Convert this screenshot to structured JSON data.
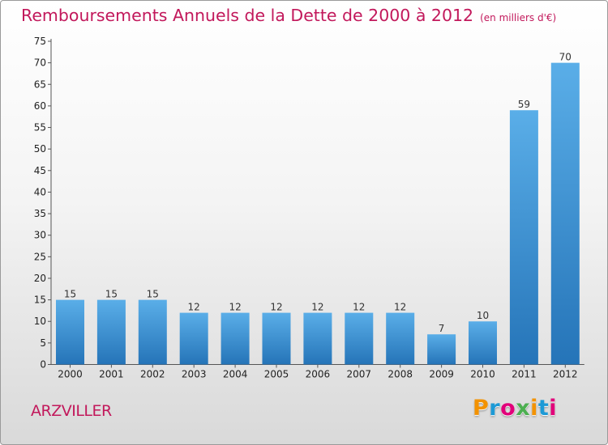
{
  "title": "Remboursements Annuels de la Dette de 2000 à 2012",
  "title_unit": "(en milliers d'€)",
  "commune": "ARZVILLER",
  "logo": {
    "letters": [
      "P",
      "r",
      "o",
      "x",
      "i",
      "t",
      "i"
    ],
    "colors": [
      "#f39200",
      "#1d9ad6",
      "#e2007a",
      "#4caf50",
      "#f39200",
      "#1d9ad6",
      "#e2007a"
    ]
  },
  "colors": {
    "bar_top": "#5aaee8",
    "bar_bottom": "#2574b8",
    "accent": "#c2185b"
  },
  "chart_data": {
    "type": "bar",
    "categories": [
      "2000",
      "2001",
      "2002",
      "2003",
      "2004",
      "2005",
      "2006",
      "2007",
      "2008",
      "2009",
      "2010",
      "2011",
      "2012"
    ],
    "values": [
      15,
      15,
      15,
      12,
      12,
      12,
      12,
      12,
      12,
      7,
      10,
      59,
      70
    ],
    "ylim": [
      0,
      75
    ],
    "yticks": [
      0,
      5,
      10,
      15,
      20,
      25,
      30,
      35,
      40,
      45,
      50,
      55,
      60,
      65,
      70,
      75
    ],
    "grid": false
  }
}
